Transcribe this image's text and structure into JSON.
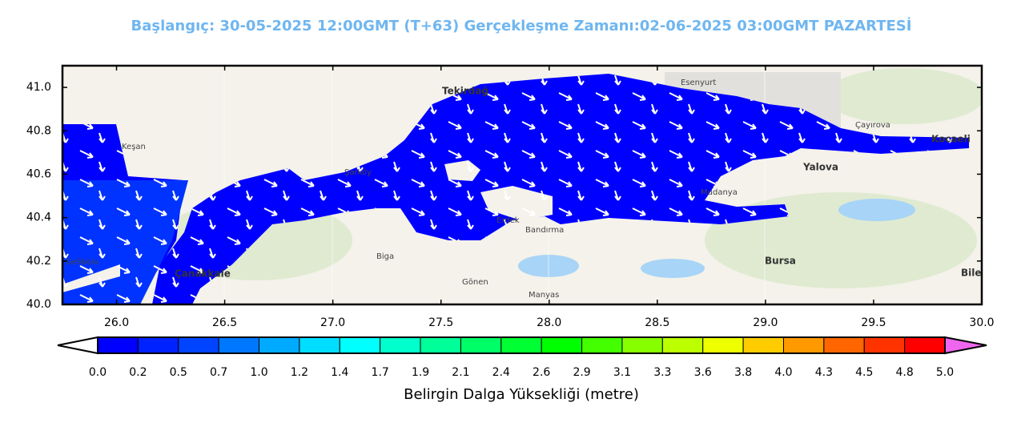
{
  "title": "Başlangıç: 30-05-2025 12:00GMT (T+63)  Gerçekleşme Zamanı:02-06-2025 03:00GMT PAZARTESİ",
  "map": {
    "type": "map",
    "xlim": [
      25.75,
      30
    ],
    "ylim": [
      40.0,
      41.1
    ],
    "xticks": [
      {
        "value": 26,
        "label": "26.0"
      },
      26.5,
      {
        "value": 27,
        "label": "27.0"
      },
      27.5,
      {
        "value": 28,
        "label": "28.0"
      },
      28.5,
      {
        "value": 29,
        "label": "29.0"
      },
      29.5,
      {
        "value": 30,
        "label": "30.0"
      }
    ],
    "yticks": [
      {
        "value": 40,
        "label": "40.0"
      },
      40.2,
      40.4,
      40.6,
      40.8,
      {
        "value": 41,
        "label": "41.0"
      }
    ],
    "places": [
      "Tekirdağ",
      "Yalova",
      "Bursa",
      "Çanakkale",
      "Kocaeli",
      "Bandırma",
      "Gönen",
      "Manyas",
      "Biga",
      "Şarköy",
      "Erdek",
      "Mudanya",
      "Keşan",
      "Gelibolu",
      "Esenyurt",
      "Çayırova",
      "Bile"
    ]
  },
  "colorbar": {
    "label": "Belirgin Dalga Yüksekliği (metre)",
    "ticks": [
      {
        "value": 0,
        "label": "0.0"
      },
      0.2,
      0.5,
      0.7,
      {
        "value": 1,
        "label": "1.0"
      },
      1.2,
      1.4,
      1.7,
      1.9,
      2.1,
      2.4,
      2.6,
      2.9,
      3.1,
      3.3,
      3.6,
      3.8,
      {
        "value": 4,
        "label": "4.0"
      },
      4.3,
      4.5,
      4.8,
      {
        "value": 5,
        "label": "5.0"
      }
    ],
    "colors": [
      "#0000ff",
      "#0022ff",
      "#0044ff",
      "#0077ff",
      "#00aaff",
      "#00ddff",
      "#00ffff",
      "#00ffcc",
      "#00ff99",
      "#00ff66",
      "#00ff33",
      "#00ff00",
      "#44ff00",
      "#88ff00",
      "#bbff00",
      "#eeff00",
      "#ffcc00",
      "#ff9900",
      "#ff6600",
      "#ff3300",
      "#ff0000"
    ],
    "extend_colors": [
      "#ffffff",
      "#ee66ee"
    ]
  }
}
